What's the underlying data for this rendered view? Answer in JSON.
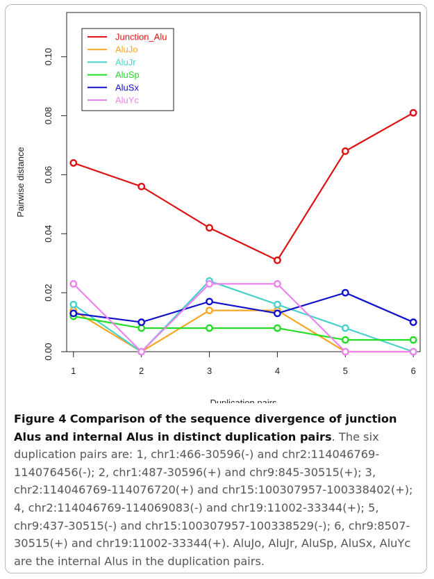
{
  "chart_data": {
    "type": "line",
    "x": [
      1,
      2,
      3,
      4,
      5,
      6
    ],
    "xticks": [
      "1",
      "2",
      "3",
      "4",
      "5",
      "6"
    ],
    "yticks": [
      "0.00",
      "0.02",
      "0.04",
      "0.06",
      "0.08",
      "0.10"
    ],
    "ylim": [
      0,
      0.115
    ],
    "xlim": [
      0.9,
      6.1
    ],
    "xlabel": "Duplication pairs",
    "ylabel": "Pairwise distance",
    "grid": false,
    "legend_position": "top-left",
    "series": [
      {
        "name": "Junction_Alu",
        "color": "#dd1111",
        "values": [
          0.064,
          0.056,
          0.042,
          0.031,
          0.068,
          0.081
        ]
      },
      {
        "name": "AluJo",
        "color": "#f5a623",
        "values": [
          0.014,
          0.0,
          0.014,
          0.014,
          0.0,
          0.0
        ]
      },
      {
        "name": "AluJr",
        "color": "#48d1cc",
        "values": [
          0.016,
          0.0,
          0.024,
          0.016,
          0.008,
          0.0
        ]
      },
      {
        "name": "AluSp",
        "color": "#22dd22",
        "values": [
          0.012,
          0.008,
          0.008,
          0.008,
          0.004,
          0.004
        ]
      },
      {
        "name": "AluSx",
        "color": "#1111cc",
        "values": [
          0.013,
          0.01,
          0.017,
          0.013,
          0.02,
          0.01
        ]
      },
      {
        "name": "AluYc",
        "color": "#ee82ee",
        "values": [
          0.023,
          0.0,
          0.023,
          0.023,
          0.0,
          0.0
        ]
      }
    ]
  },
  "caption": {
    "label": "Figure 4",
    "title": "Comparison of the sequence divergence of junction Alus and internal Alus in distinct duplication pairs",
    "body": ". The six duplication pairs are: 1, chr1:466-30596(-) and chr2:114046769-114076456(-); 2, chr1:487-30596(+) and chr9:845-30515(+); 3, chr2:114046769-114076720(+) and chr15:100307957-100338402(+); 4, chr2:114046769-114069083(-) and chr19:11002-33344(+); 5, chr9:437-30515(-) and chr15:100307957-100338529(-); 6, chr9:8507-30515(+) and chr19:11002-33344(+). AluJo, AluJr, AluSp, AluSx, AluYc are the internal Alus in the duplication pairs."
  }
}
